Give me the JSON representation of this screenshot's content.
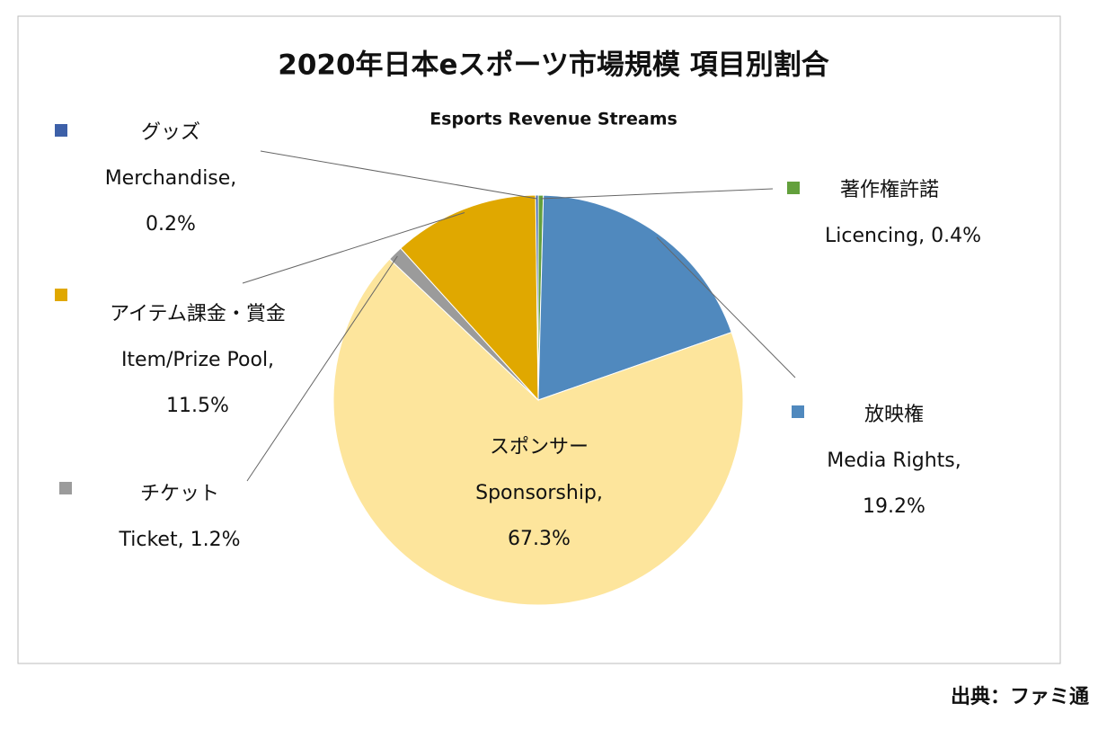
{
  "chart_data": {
    "type": "pie",
    "title": "2020年日本eスポーツ市場規模 項目別割合",
    "subtitle": "Esports Revenue Streams",
    "labels_ja": [
      "著作権許諾",
      "放映権",
      "スポンサー",
      "チケット",
      "アイテム課金・賞金",
      "グッズ"
    ],
    "categories": [
      "Licencing,",
      "Media Rights,",
      "Sponsorship,",
      "Ticket,",
      "Item/Prize Pool,",
      "Merchandise,"
    ],
    "values": [
      0.4,
      19.2,
      67.3,
      1.2,
      11.5,
      0.2
    ],
    "value_labels": [
      "0.4%",
      "19.2%",
      "67.3%",
      "1.2%",
      "11.5%",
      "0.2%"
    ],
    "colors": [
      "#63a03c",
      "#5089be",
      "#fde59c",
      "#9b9b9b",
      "#e0a800",
      "#3d60a8"
    ],
    "source": "出典：ファミ通"
  }
}
